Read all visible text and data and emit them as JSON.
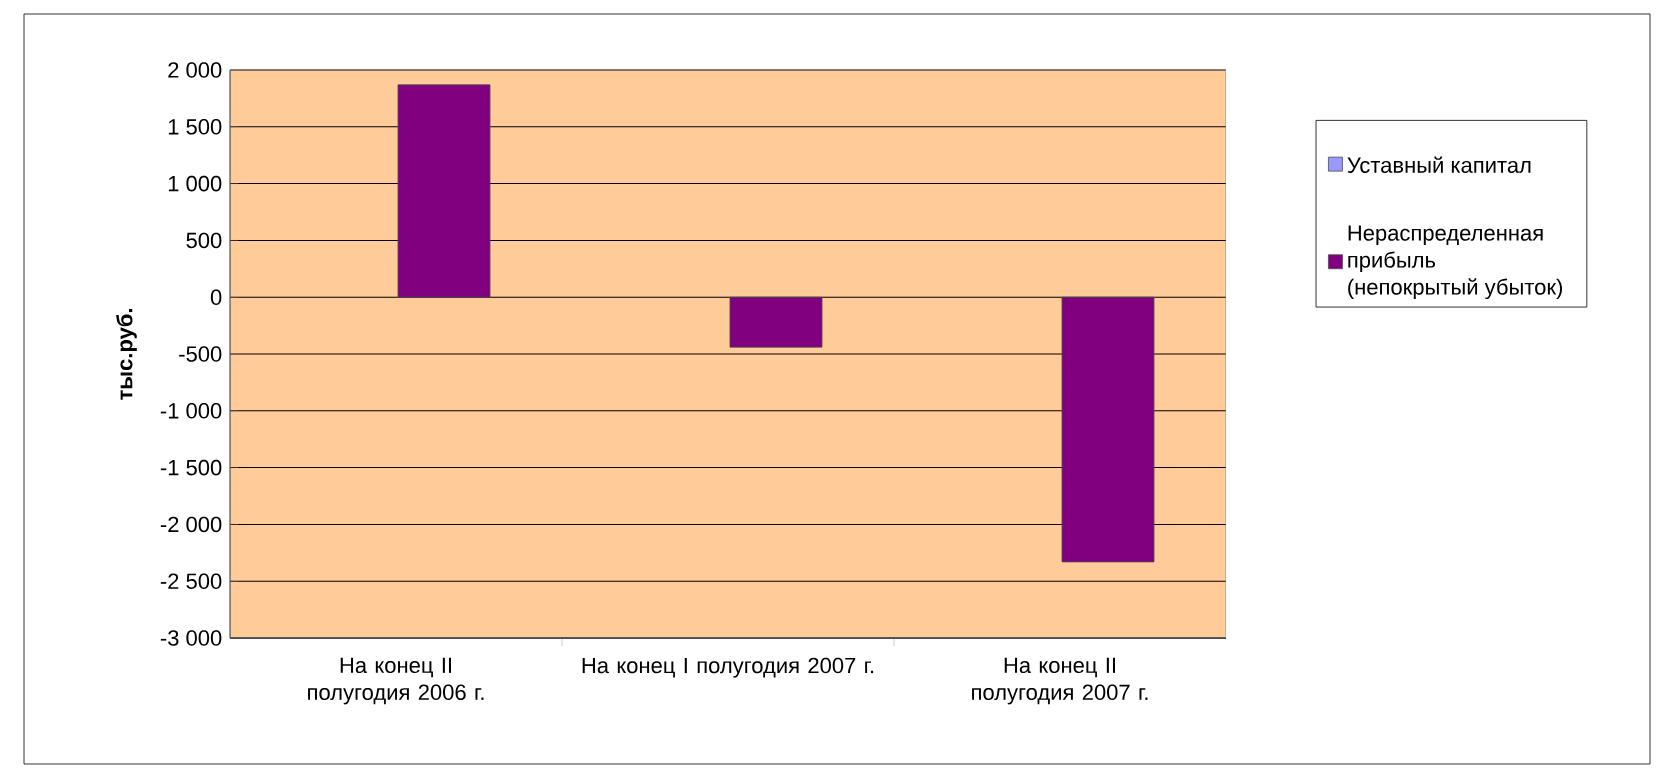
{
  "chart_data": {
    "type": "bar",
    "categories": [
      "На конец II полугодия 2006 г.",
      "На конец I полугодия 2007 г.",
      "На конец II полугодия 2007 г."
    ],
    "series": [
      {
        "name": "Уставный капитал",
        "color": "#9999ff",
        "values": [
          null,
          null,
          null
        ]
      },
      {
        "name": "Нераспределенная прибыль (непокрытый убыток)",
        "color": "#800080",
        "values": [
          1870,
          -440,
          -2330
        ]
      }
    ],
    "ylabel": "тыс.руб.",
    "ylim": [
      -3000,
      2000
    ],
    "yticks": [
      {
        "value": -3000,
        "label": "-3 000"
      },
      {
        "value": -2500,
        "label": "-2 500"
      },
      {
        "value": -2000,
        "label": "-2 000"
      },
      {
        "value": -1500,
        "label": "-1 500"
      },
      {
        "value": -1000,
        "label": "-1 000"
      },
      {
        "value": -500,
        "label": "-500"
      },
      0,
      500,
      {
        "value": 1000,
        "label": "1 000"
      },
      {
        "value": 1500,
        "label": "1 500"
      },
      {
        "value": 2000,
        "label": "2 000"
      }
    ],
    "grid": "y",
    "legend": "right"
  }
}
